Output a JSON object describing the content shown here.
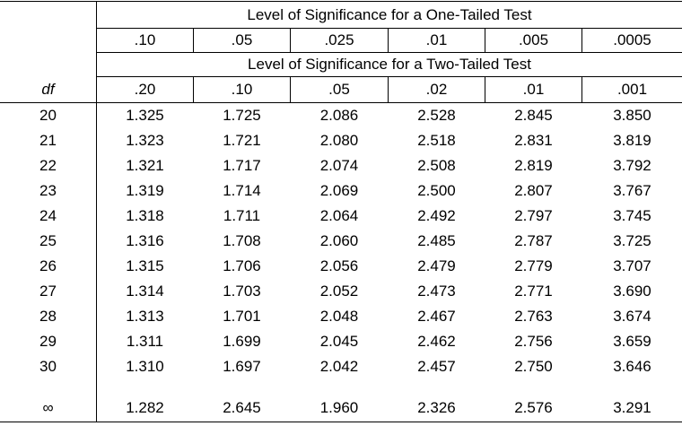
{
  "header": {
    "one_tailed_title": "Level of Significance for a One-Tailed Test",
    "one_tailed_levels": [
      ".10",
      ".05",
      ".025",
      ".01",
      ".005",
      ".0005"
    ],
    "two_tailed_title": "Level of Significance for a Two-Tailed Test",
    "two_tailed_levels": [
      ".20",
      ".10",
      ".05",
      ".02",
      ".01",
      ".001"
    ],
    "df_label": "df"
  },
  "rows": [
    {
      "df": "20",
      "values": [
        "1.325",
        "1.725",
        "2.086",
        "2.528",
        "2.845",
        "3.850"
      ]
    },
    {
      "df": "21",
      "values": [
        "1.323",
        "1.721",
        "2.080",
        "2.518",
        "2.831",
        "3.819"
      ]
    },
    {
      "df": "22",
      "values": [
        "1.321",
        "1.717",
        "2.074",
        "2.508",
        "2.819",
        "3.792"
      ]
    },
    {
      "df": "23",
      "values": [
        "1.319",
        "1.714",
        "2.069",
        "2.500",
        "2.807",
        "3.767"
      ]
    },
    {
      "df": "24",
      "values": [
        "1.318",
        "1.711",
        "2.064",
        "2.492",
        "2.797",
        "3.745"
      ]
    },
    {
      "df": "25",
      "values": [
        "1.316",
        "1.708",
        "2.060",
        "2.485",
        "2.787",
        "3.725"
      ]
    },
    {
      "df": "26",
      "values": [
        "1.315",
        "1.706",
        "2.056",
        "2.479",
        "2.779",
        "3.707"
      ]
    },
    {
      "df": "27",
      "values": [
        "1.314",
        "1.703",
        "2.052",
        "2.473",
        "2.771",
        "3.690"
      ]
    },
    {
      "df": "28",
      "values": [
        "1.313",
        "1.701",
        "2.048",
        "2.467",
        "2.763",
        "3.674"
      ]
    },
    {
      "df": "29",
      "values": [
        "1.311",
        "1.699",
        "2.045",
        "2.462",
        "2.756",
        "3.659"
      ]
    },
    {
      "df": "30",
      "values": [
        "1.310",
        "1.697",
        "2.042",
        "2.457",
        "2.750",
        "3.646"
      ]
    }
  ],
  "infinity_row": {
    "df": "∞",
    "values": [
      "1.282",
      "2.645",
      "1.960",
      "2.326",
      "2.576",
      "3.291"
    ]
  }
}
